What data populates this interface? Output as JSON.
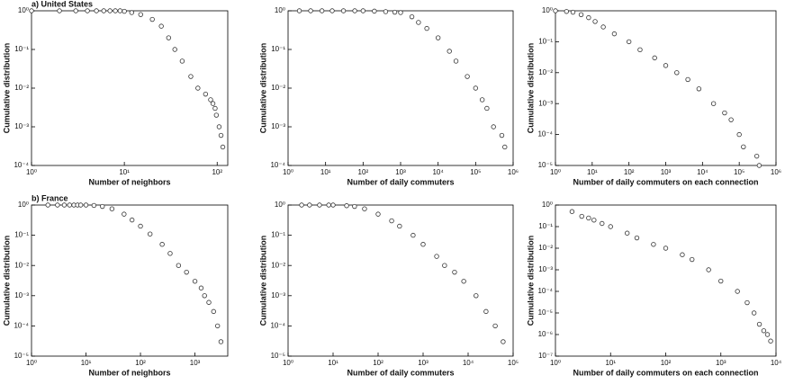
{
  "chart_data": [
    {
      "type": "scatter",
      "title": "a) United States",
      "xlabel": "Number of neighbors",
      "ylabel": "Cumulative distribution",
      "xscale": "log",
      "yscale": "log",
      "x": [
        1,
        2,
        3,
        4,
        5,
        6,
        7,
        8,
        9,
        10,
        12,
        15,
        20,
        25,
        30,
        35,
        42,
        52,
        62,
        75,
        85,
        90,
        95,
        98,
        105,
        110,
        115
      ],
      "values": [
        1,
        1,
        1,
        1,
        1,
        1,
        1,
        1,
        1,
        0.97,
        0.9,
        0.8,
        0.6,
        0.4,
        0.2,
        0.1,
        0.05,
        0.02,
        0.01,
        0.007,
        0.005,
        0.004,
        0.003,
        0.002,
        0.001,
        0.0006,
        0.0003
      ],
      "xlim": [
        1,
        130
      ],
      "ylim": [
        0.0001,
        1
      ],
      "xticks": [
        {
          "value": 1,
          "label": "10⁰"
        },
        {
          "value": 10,
          "label": "10¹"
        },
        {
          "value": 100,
          "label": "10²"
        }
      ],
      "yticks": [
        {
          "value": 0.0001,
          "label": "10⁻⁴"
        },
        {
          "value": 0.001,
          "label": "10⁻³"
        },
        {
          "value": 0.01,
          "label": "10⁻²"
        },
        {
          "value": 0.1,
          "label": "10⁻¹"
        },
        {
          "value": 1,
          "label": "10⁰"
        }
      ]
    },
    {
      "type": "scatter",
      "xlabel": "Number of daily commuters",
      "ylabel": "Cumulative distribution",
      "xscale": "log",
      "yscale": "log",
      "x": [
        2,
        4,
        8,
        15,
        30,
        60,
        100,
        200,
        400,
        700,
        1000,
        2000,
        3000,
        5000,
        10000,
        20000,
        30000,
        60000,
        100000,
        150000,
        200000,
        300000,
        500000,
        600000
      ],
      "values": [
        1,
        1,
        1,
        1,
        1,
        1,
        1,
        0.98,
        0.95,
        0.92,
        0.9,
        0.7,
        0.5,
        0.35,
        0.2,
        0.09,
        0.05,
        0.02,
        0.01,
        0.005,
        0.003,
        0.001,
        0.0006,
        0.0003
      ],
      "xlim": [
        1,
        1000000
      ],
      "ylim": [
        0.0001,
        1
      ],
      "xticks": [
        {
          "value": 1,
          "label": "10⁰"
        },
        {
          "value": 10,
          "label": "10¹"
        },
        {
          "value": 100,
          "label": "10²"
        },
        {
          "value": 1000,
          "label": "10³"
        },
        {
          "value": 10000,
          "label": "10⁴"
        },
        {
          "value": 100000,
          "label": "10⁵"
        },
        {
          "value": 1000000,
          "label": "10⁶"
        }
      ],
      "yticks": [
        {
          "value": 0.0001,
          "label": "10⁻⁴"
        },
        {
          "value": 0.001,
          "label": "10⁻³"
        },
        {
          "value": 0.01,
          "label": "10⁻²"
        },
        {
          "value": 0.1,
          "label": "10⁻¹"
        },
        {
          "value": 1,
          "label": "10⁰"
        }
      ]
    },
    {
      "type": "scatter",
      "xlabel": "Number of daily commuters on each connection",
      "ylabel": "Cumulative distribution",
      "xscale": "log",
      "yscale": "log",
      "x": [
        1,
        2,
        3,
        5,
        8,
        12,
        20,
        40,
        100,
        200,
        500,
        1000,
        2000,
        4000,
        8000,
        20000,
        40000,
        60000,
        100000,
        130000,
        300000,
        350000
      ],
      "values": [
        1,
        0.95,
        0.9,
        0.75,
        0.6,
        0.45,
        0.3,
        0.18,
        0.1,
        0.055,
        0.03,
        0.017,
        0.01,
        0.006,
        0.003,
        0.001,
        0.0005,
        0.0003,
        0.0001,
        4e-05,
        2e-05,
        1e-05
      ],
      "xlim": [
        1,
        1000000
      ],
      "ylim": [
        1e-05,
        1
      ],
      "xticks": [
        {
          "value": 1,
          "label": "10⁰"
        },
        {
          "value": 10,
          "label": "10¹"
        },
        {
          "value": 100,
          "label": "10²"
        },
        {
          "value": 1000,
          "label": "10³"
        },
        {
          "value": 10000,
          "label": "10⁴"
        },
        {
          "value": 100000,
          "label": "10⁵"
        },
        {
          "value": 1000000,
          "label": "10⁶"
        }
      ],
      "yticks": [
        {
          "value": 1e-05,
          "label": "10⁻⁵"
        },
        {
          "value": 0.0001,
          "label": "10⁻⁴"
        },
        {
          "value": 0.001,
          "label": "10⁻³"
        },
        {
          "value": 0.01,
          "label": "10⁻²"
        },
        {
          "value": 0.1,
          "label": "10⁻¹"
        },
        {
          "value": 1,
          "label": "10⁰"
        }
      ]
    },
    {
      "type": "scatter",
      "title": "b) France",
      "xlabel": "Number of neighbors",
      "ylabel": "Cumulative distribution",
      "xscale": "log",
      "yscale": "log",
      "x": [
        2,
        3,
        4,
        5,
        6,
        7,
        8,
        10,
        14,
        20,
        30,
        50,
        70,
        100,
        150,
        250,
        350,
        500,
        700,
        1000,
        1300,
        1500,
        1800,
        2200,
        2600,
        3000
      ],
      "values": [
        1,
        1,
        1,
        1,
        1,
        1,
        1,
        1,
        0.97,
        0.9,
        0.75,
        0.5,
        0.32,
        0.2,
        0.11,
        0.05,
        0.025,
        0.01,
        0.006,
        0.003,
        0.0018,
        0.001,
        0.0006,
        0.0003,
        0.0001,
        3e-05
      ],
      "xlim": [
        1,
        4000
      ],
      "ylim": [
        1e-05,
        1
      ],
      "xticks": [
        {
          "value": 1,
          "label": "10⁰"
        },
        {
          "value": 10,
          "label": "10¹"
        },
        {
          "value": 100,
          "label": "10²"
        },
        {
          "value": 1000,
          "label": "10³"
        }
      ],
      "yticks": [
        {
          "value": 1e-05,
          "label": "10⁻⁵"
        },
        {
          "value": 0.0001,
          "label": "10⁻⁴"
        },
        {
          "value": 0.001,
          "label": "10⁻³"
        },
        {
          "value": 0.01,
          "label": "10⁻²"
        },
        {
          "value": 0.1,
          "label": "10⁻¹"
        },
        {
          "value": 1,
          "label": "10⁰"
        }
      ]
    },
    {
      "type": "scatter",
      "xlabel": "Number of daily commuters",
      "ylabel": "Cumulative distribution",
      "xscale": "log",
      "yscale": "log",
      "x": [
        2,
        3,
        5,
        8,
        10,
        20,
        30,
        50,
        100,
        200,
        300,
        600,
        1000,
        2000,
        3000,
        5000,
        8000,
        15000,
        25000,
        40000,
        60000
      ],
      "values": [
        1,
        1,
        1,
        1,
        1,
        0.95,
        0.9,
        0.75,
        0.5,
        0.3,
        0.2,
        0.1,
        0.05,
        0.02,
        0.01,
        0.006,
        0.003,
        0.001,
        0.0003,
        0.0001,
        3e-05
      ],
      "xlim": [
        1,
        100000
      ],
      "ylim": [
        1e-05,
        1
      ],
      "xticks": [
        {
          "value": 1,
          "label": "10⁰"
        },
        {
          "value": 10,
          "label": "10¹"
        },
        {
          "value": 100,
          "label": "10²"
        },
        {
          "value": 1000,
          "label": "10³"
        },
        {
          "value": 10000,
          "label": "10⁴"
        },
        {
          "value": 100000,
          "label": "10⁵"
        }
      ],
      "yticks": [
        {
          "value": 1e-05,
          "label": "10⁻⁵"
        },
        {
          "value": 0.0001,
          "label": "10⁻⁴"
        },
        {
          "value": 0.001,
          "label": "10⁻³"
        },
        {
          "value": 0.01,
          "label": "10⁻²"
        },
        {
          "value": 0.1,
          "label": "10⁻¹"
        },
        {
          "value": 1,
          "label": "10⁰"
        }
      ]
    },
    {
      "type": "scatter",
      "xlabel": "Number of daily commuters on each connection",
      "ylabel": "Cumulative distribution",
      "xscale": "log",
      "yscale": "log",
      "x": [
        2,
        3,
        4,
        5,
        7,
        10,
        20,
        30,
        60,
        100,
        200,
        300,
        600,
        1000,
        2000,
        3000,
        4000,
        5000,
        6000,
        7000,
        8000
      ],
      "values": [
        0.5,
        0.3,
        0.25,
        0.2,
        0.14,
        0.1,
        0.05,
        0.03,
        0.015,
        0.01,
        0.005,
        0.003,
        0.001,
        0.0003,
        0.0001,
        3e-05,
        1e-05,
        3e-06,
        1.5e-06,
        1e-06,
        5e-07
      ],
      "xlim": [
        1,
        10000
      ],
      "ylim": [
        1e-07,
        1
      ],
      "xticks": [
        {
          "value": 1,
          "label": "10⁰"
        },
        {
          "value": 10,
          "label": "10¹"
        },
        {
          "value": 100,
          "label": "10²"
        },
        {
          "value": 1000,
          "label": "10³"
        },
        {
          "value": 10000,
          "label": "10⁴"
        }
      ],
      "yticks": [
        {
          "value": 1e-07,
          "label": "10⁻⁷"
        },
        {
          "value": 1e-06,
          "label": "10⁻⁶"
        },
        {
          "value": 1e-05,
          "label": "10⁻⁵"
        },
        {
          "value": 0.0001,
          "label": "10⁻⁴"
        },
        {
          "value": 0.001,
          "label": "10⁻³"
        },
        {
          "value": 0.01,
          "label": "10⁻²"
        },
        {
          "value": 0.1,
          "label": "10⁻¹"
        },
        {
          "value": 1,
          "label": "10⁰"
        }
      ]
    }
  ]
}
